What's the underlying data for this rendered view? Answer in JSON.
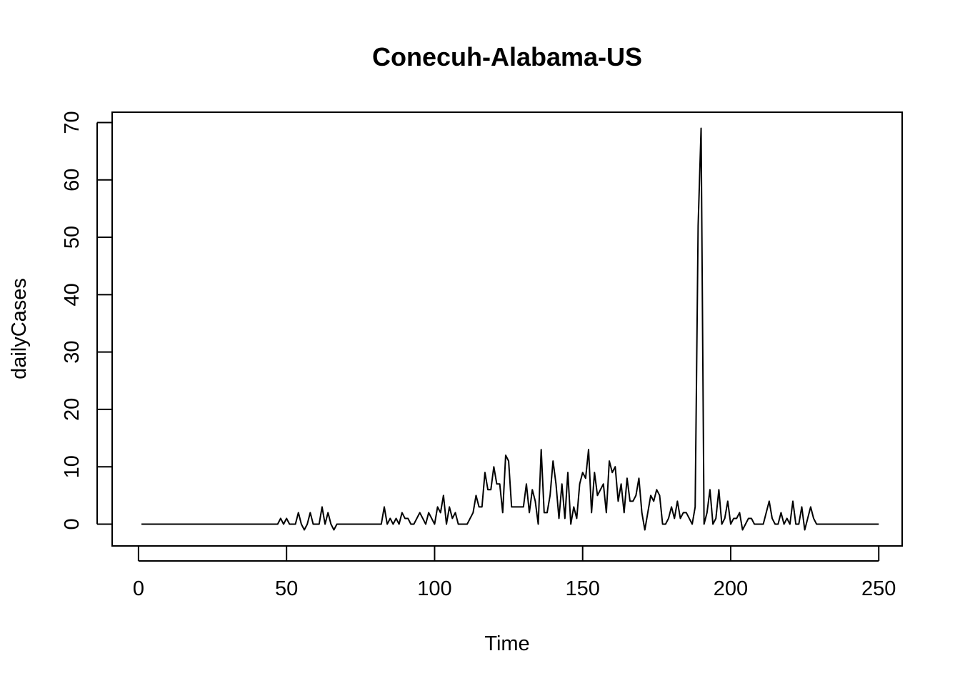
{
  "chart_data": {
    "type": "line",
    "title": "Conecuh-Alabama-US",
    "xlabel": "Time",
    "ylabel": "dailyCases",
    "xlim": [
      -8.9,
      257.9
    ],
    "ylim": [
      -3.8,
      71.8
    ],
    "xticks": [
      0,
      50,
      100,
      150,
      200,
      250
    ],
    "yticks": [
      0,
      10,
      20,
      30,
      40,
      50,
      60,
      70
    ],
    "grid": false,
    "legend": "none",
    "line_color": "#000000",
    "series": [
      {
        "x_start": 1,
        "values": [
          0,
          0,
          0,
          0,
          0,
          0,
          0,
          0,
          0,
          0,
          0,
          0,
          0,
          0,
          0,
          0,
          0,
          0,
          0,
          0,
          0,
          0,
          0,
          0,
          0,
          0,
          0,
          0,
          0,
          0,
          0,
          0,
          0,
          0,
          0,
          0,
          0,
          0,
          0,
          0,
          0,
          0,
          0,
          0,
          0,
          0,
          0,
          1,
          0,
          1,
          0,
          0,
          0,
          2,
          0,
          -1,
          0,
          2,
          0,
          0,
          0,
          3,
          0,
          2,
          0,
          -1,
          0,
          0,
          0,
          0,
          0,
          0,
          0,
          0,
          0,
          0,
          0,
          0,
          0,
          0,
          0,
          0,
          3,
          0,
          1,
          0,
          1,
          0,
          2,
          1,
          1,
          0,
          0,
          1,
          2,
          1,
          0,
          2,
          1,
          0,
          3,
          2,
          5,
          0,
          3,
          1,
          2,
          0,
          0,
          0,
          0,
          1,
          2,
          5,
          3,
          3,
          9,
          6,
          6,
          10,
          7,
          7,
          2,
          12,
          11,
          3,
          3,
          3,
          3,
          3,
          7,
          2,
          6,
          4,
          0,
          13,
          2,
          2,
          5,
          11,
          7,
          1,
          7,
          1,
          9,
          0,
          3,
          1,
          7,
          9,
          8,
          13,
          2,
          9,
          5,
          6,
          7,
          2,
          11,
          9,
          10,
          4,
          7,
          2,
          8,
          4,
          4,
          5,
          8,
          2,
          -1,
          2,
          5,
          4,
          6,
          5,
          0,
          0,
          1,
          3,
          1,
          4,
          1,
          2,
          2,
          1,
          0,
          3,
          52,
          69,
          0,
          2,
          6,
          0,
          1,
          6,
          0,
          1,
          4,
          0,
          1,
          1,
          2,
          -1,
          0,
          1,
          1,
          0,
          0,
          0,
          0,
          2,
          4,
          1,
          0,
          0,
          2,
          0,
          1,
          0,
          4,
          0,
          0,
          3,
          -1,
          1,
          3,
          1,
          0,
          0,
          0,
          0,
          0,
          0,
          0,
          0,
          0,
          0,
          0,
          0,
          0,
          0,
          0,
          0,
          0,
          0,
          0,
          0,
          0,
          0
        ]
      }
    ]
  }
}
